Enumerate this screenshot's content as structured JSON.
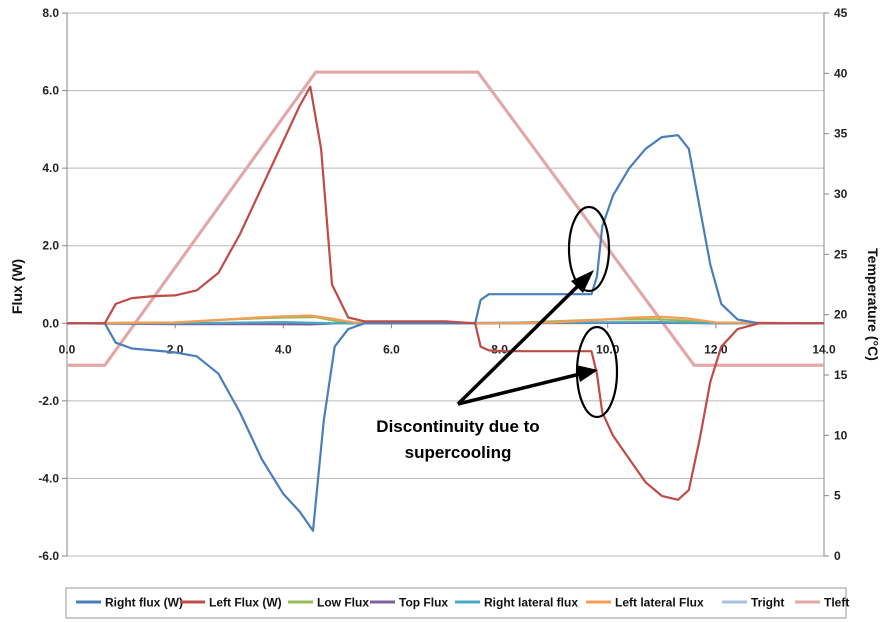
{
  "chart_data": {
    "type": "line",
    "title": "",
    "xlabel": "",
    "ylabel": "Flux (W)",
    "y2label": "Temperature (°C)",
    "xlim": [
      0,
      14
    ],
    "ylim": [
      -6,
      8
    ],
    "y2lim": [
      0,
      45
    ],
    "x_ticks": [
      "0.0",
      "2.0",
      "4.0",
      "6.0",
      "8.0",
      "10.0",
      "12.0",
      "14.0"
    ],
    "y_ticks": [
      "-6.0",
      "-4.0",
      "-2.0",
      "0.0",
      "2.0",
      "4.0",
      "6.0",
      "8.0"
    ],
    "y2_ticks": [
      "0",
      "5",
      "10",
      "15",
      "20",
      "25",
      "30",
      "35",
      "40",
      "45"
    ],
    "grid": "horizontal",
    "legend_position": "bottom",
    "series": [
      {
        "name": "Right flux (W)",
        "color": "#4a7ebb",
        "axis": "left",
        "x": [
          0,
          0.7,
          0.9,
          1.2,
          1.6,
          2.0,
          2.4,
          2.8,
          3.2,
          3.6,
          4.0,
          4.3,
          4.55,
          4.75,
          4.95,
          5.2,
          5.5,
          6.0,
          7.0,
          7.55,
          7.65,
          7.8,
          8.1,
          9.7,
          9.8,
          9.9,
          10.1,
          10.4,
          10.7,
          11.0,
          11.3,
          11.5,
          11.7,
          11.9,
          12.1,
          12.4,
          12.8,
          14.0
        ],
        "y": [
          0.0,
          0.0,
          -0.5,
          -0.65,
          -0.7,
          -0.75,
          -0.85,
          -1.3,
          -2.3,
          -3.5,
          -4.4,
          -4.85,
          -5.35,
          -2.5,
          -0.6,
          -0.15,
          0.0,
          0.0,
          0.0,
          0.0,
          0.6,
          0.75,
          0.75,
          0.75,
          1.2,
          2.5,
          3.3,
          4.0,
          4.5,
          4.8,
          4.85,
          4.5,
          3.0,
          1.5,
          0.5,
          0.1,
          0.0,
          0.0
        ]
      },
      {
        "name": "Left Flux (W)",
        "color": "#be4b48",
        "axis": "left",
        "x": [
          0,
          0.7,
          0.9,
          1.2,
          1.6,
          2.0,
          2.4,
          2.8,
          3.2,
          3.6,
          4.0,
          4.3,
          4.5,
          4.7,
          4.9,
          5.2,
          5.5,
          6.0,
          7.0,
          7.55,
          7.65,
          7.8,
          8.1,
          9.7,
          9.8,
          9.9,
          10.1,
          10.4,
          10.7,
          11.0,
          11.3,
          11.5,
          11.7,
          11.9,
          12.1,
          12.4,
          12.8,
          14.0
        ],
        "y": [
          0.0,
          0.0,
          0.5,
          0.65,
          0.7,
          0.72,
          0.85,
          1.3,
          2.3,
          3.5,
          4.7,
          5.6,
          6.1,
          4.5,
          1.0,
          0.15,
          0.05,
          0.05,
          0.05,
          0.0,
          -0.6,
          -0.7,
          -0.72,
          -0.72,
          -1.3,
          -2.3,
          -2.9,
          -3.5,
          -4.1,
          -4.45,
          -4.55,
          -4.3,
          -3.0,
          -1.5,
          -0.6,
          -0.15,
          0.0,
          0.0
        ]
      },
      {
        "name": "Low Flux",
        "color": "#98b954",
        "axis": "left",
        "x": [
          0,
          2.0,
          3.0,
          4.0,
          4.6,
          5.0,
          5.5,
          8.0,
          9.0,
          10.0,
          11.0,
          12.0,
          14.0
        ],
        "y": [
          0.0,
          0.02,
          0.1,
          0.15,
          0.16,
          0.05,
          0.0,
          0.0,
          0.05,
          0.1,
          0.1,
          0.02,
          0.0
        ]
      },
      {
        "name": "Top Flux",
        "color": "#7d60a0",
        "axis": "left",
        "x": [
          0,
          2.0,
          3.5,
          4.5,
          5.0,
          5.5,
          8.0,
          10.0,
          11.0,
          12.0,
          14.0
        ],
        "y": [
          0.0,
          -0.02,
          -0.02,
          -0.03,
          0.0,
          0.0,
          0.0,
          0.01,
          0.01,
          0.0,
          0.0
        ]
      },
      {
        "name": "Right lateral flux",
        "color": "#46aac5",
        "axis": "left",
        "x": [
          0,
          2.0,
          4.0,
          5.0,
          6.0,
          9.0,
          11.0,
          12.0,
          14.0
        ],
        "y": [
          0.0,
          0.0,
          0.03,
          0.0,
          0.0,
          0.02,
          0.03,
          0.0,
          0.0
        ]
      },
      {
        "name": "Left lateral Flux",
        "color": "#f59d56",
        "axis": "left",
        "x": [
          0,
          2.0,
          3.0,
          3.5,
          4.0,
          4.5,
          4.9,
          5.3,
          8.0,
          9.0,
          10.0,
          10.5,
          11.0,
          11.5,
          12.0,
          14.0
        ],
        "y": [
          0.0,
          0.02,
          0.1,
          0.15,
          0.18,
          0.2,
          0.12,
          0.02,
          0.0,
          0.02,
          0.1,
          0.15,
          0.17,
          0.12,
          0.02,
          0.0
        ]
      },
      {
        "name": "Tright",
        "color": "#a5c2e2",
        "axis": "right",
        "x": [
          0,
          0.7,
          4.6,
          7.6,
          11.6,
          14.0
        ],
        "y": [
          15.8,
          15.8,
          40.1,
          40.1,
          15.8,
          15.8
        ]
      },
      {
        "name": "Tleft",
        "color": "#e4a7a5",
        "axis": "right",
        "x": [
          0,
          0.7,
          4.6,
          7.6,
          11.6,
          14.0
        ],
        "y": [
          15.8,
          15.8,
          40.1,
          40.1,
          15.8,
          15.8
        ]
      }
    ],
    "annotations": [
      {
        "text": "Discontinuity due to",
        "type": "text"
      },
      {
        "text": "supercooling",
        "type": "text"
      }
    ]
  }
}
